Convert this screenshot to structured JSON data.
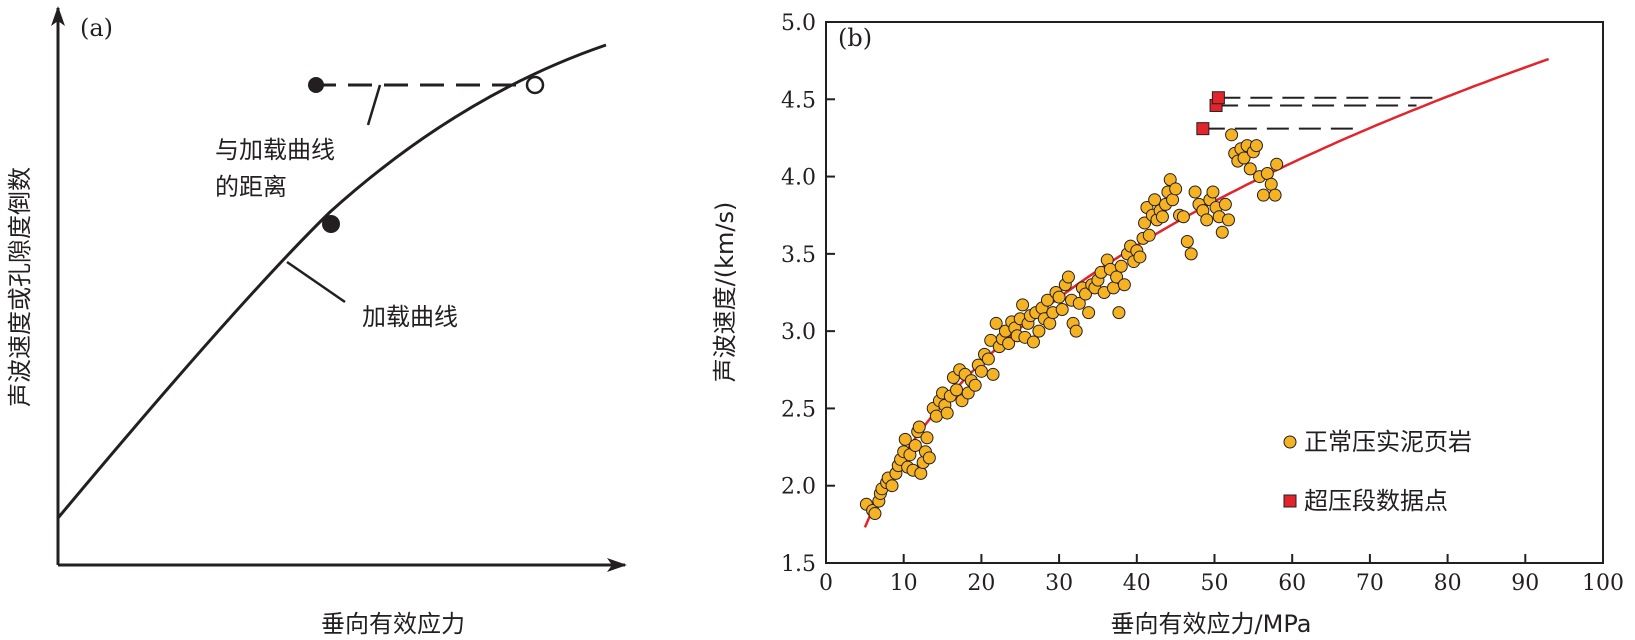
{
  "panel_a": {
    "label": "(a)",
    "ylabel": "声波速度或孔隙度倒数",
    "xlabel": "垂向有效应力",
    "annotation_distance_line1": "与加载曲线",
    "annotation_distance_line2": "的距离",
    "annotation_curve": "加载曲线"
  },
  "chart_data": [
    {
      "type": "scatter",
      "panel": "(b)",
      "xlabel": "垂向有效应力/MPa",
      "ylabel": "声波速度/(km/s)",
      "xlim": [
        0,
        100
      ],
      "ylim": [
        1.5,
        5.0
      ],
      "xticks": [
        "0",
        "10",
        "20",
        "30",
        "40",
        "50",
        "60",
        "70",
        "80",
        "90",
        "100"
      ],
      "yticks": [
        "1.5",
        "2.0",
        "2.5",
        "3.0",
        "3.5",
        "4.0",
        "4.5",
        "5.0"
      ],
      "grid": false,
      "legend_position": "bottom-right",
      "colors": {
        "normal": "#f5b324",
        "overpressure": "#e3242b",
        "curve": "#e3242b",
        "ink": "#231f20"
      },
      "series": [
        {
          "name": "正常压实泥页岩",
          "marker": "circle",
          "points": [
            [
              5.2,
              1.88
            ],
            [
              6.0,
              1.84
            ],
            [
              6.3,
              1.82
            ],
            [
              6.8,
              1.9
            ],
            [
              7.0,
              1.95
            ],
            [
              7.2,
              1.98
            ],
            [
              7.8,
              2.02
            ],
            [
              8.0,
              2.05
            ],
            [
              8.5,
              2.0
            ],
            [
              9.0,
              2.08
            ],
            [
              9.3,
              2.13
            ],
            [
              9.6,
              2.17
            ],
            [
              10.0,
              2.22
            ],
            [
              10.2,
              2.3
            ],
            [
              10.5,
              2.12
            ],
            [
              10.8,
              2.2
            ],
            [
              11.2,
              2.1
            ],
            [
              11.5,
              2.26
            ],
            [
              11.8,
              2.35
            ],
            [
              12.0,
              2.38
            ],
            [
              12.2,
              2.08
            ],
            [
              12.5,
              2.15
            ],
            [
              12.8,
              2.22
            ],
            [
              13.0,
              2.31
            ],
            [
              13.3,
              2.18
            ],
            [
              13.8,
              2.5
            ],
            [
              14.2,
              2.45
            ],
            [
              14.6,
              2.55
            ],
            [
              15.0,
              2.6
            ],
            [
              15.3,
              2.52
            ],
            [
              15.6,
              2.47
            ],
            [
              16.0,
              2.58
            ],
            [
              16.4,
              2.7
            ],
            [
              16.8,
              2.62
            ],
            [
              17.2,
              2.75
            ],
            [
              17.5,
              2.55
            ],
            [
              17.9,
              2.72
            ],
            [
              18.3,
              2.6
            ],
            [
              18.7,
              2.68
            ],
            [
              19.2,
              2.65
            ],
            [
              19.6,
              2.78
            ],
            [
              20.0,
              2.74
            ],
            [
              20.4,
              2.85
            ],
            [
              20.9,
              2.82
            ],
            [
              21.2,
              2.94
            ],
            [
              21.5,
              2.72
            ],
            [
              21.9,
              3.05
            ],
            [
              22.3,
              2.9
            ],
            [
              22.7,
              2.95
            ],
            [
              23.1,
              3.0
            ],
            [
              23.5,
              2.92
            ],
            [
              23.9,
              3.06
            ],
            [
              24.3,
              3.02
            ],
            [
              24.6,
              2.97
            ],
            [
              25.0,
              3.08
            ],
            [
              25.3,
              3.17
            ],
            [
              25.6,
              2.96
            ],
            [
              26.0,
              3.05
            ],
            [
              26.3,
              3.1
            ],
            [
              26.7,
              2.93
            ],
            [
              27.0,
              3.12
            ],
            [
              27.4,
              3.0
            ],
            [
              27.8,
              3.15
            ],
            [
              28.1,
              3.08
            ],
            [
              28.5,
              3.2
            ],
            [
              28.8,
              3.05
            ],
            [
              29.2,
              3.12
            ],
            [
              29.6,
              3.25
            ],
            [
              30.0,
              3.22
            ],
            [
              30.4,
              3.14
            ],
            [
              30.8,
              3.3
            ],
            [
              31.2,
              3.35
            ],
            [
              31.6,
              3.2
            ],
            [
              31.8,
              3.05
            ],
            [
              32.2,
              3.0
            ],
            [
              32.6,
              3.18
            ],
            [
              33.0,
              3.28
            ],
            [
              33.4,
              3.24
            ],
            [
              33.8,
              3.12
            ],
            [
              34.2,
              3.3
            ],
            [
              34.6,
              3.28
            ],
            [
              35.0,
              3.33
            ],
            [
              35.4,
              3.38
            ],
            [
              35.8,
              3.25
            ],
            [
              36.2,
              3.46
            ],
            [
              36.6,
              3.4
            ],
            [
              37.0,
              3.28
            ],
            [
              37.4,
              3.35
            ],
            [
              37.7,
              3.12
            ],
            [
              38.0,
              3.42
            ],
            [
              38.4,
              3.3
            ],
            [
              38.8,
              3.5
            ],
            [
              39.2,
              3.55
            ],
            [
              39.6,
              3.45
            ],
            [
              40.0,
              3.52
            ],
            [
              40.4,
              3.48
            ],
            [
              40.8,
              3.6
            ],
            [
              41.0,
              3.7
            ],
            [
              41.3,
              3.8
            ],
            [
              41.6,
              3.62
            ],
            [
              42.0,
              3.75
            ],
            [
              42.3,
              3.85
            ],
            [
              42.6,
              3.72
            ],
            [
              43.0,
              3.78
            ],
            [
              43.3,
              3.74
            ],
            [
              43.7,
              3.82
            ],
            [
              44.0,
              3.9
            ],
            [
              44.3,
              3.98
            ],
            [
              44.6,
              3.85
            ],
            [
              45.0,
              3.92
            ],
            [
              45.5,
              3.75
            ],
            [
              46.0,
              3.74
            ],
            [
              46.5,
              3.58
            ],
            [
              47.0,
              3.5
            ],
            [
              47.5,
              3.9
            ],
            [
              48.0,
              3.82
            ],
            [
              48.5,
              3.78
            ],
            [
              49.0,
              3.72
            ],
            [
              49.4,
              3.85
            ],
            [
              49.8,
              3.9
            ],
            [
              50.2,
              3.8
            ],
            [
              50.6,
              3.74
            ],
            [
              51.0,
              3.64
            ],
            [
              51.4,
              3.82
            ],
            [
              51.8,
              3.72
            ],
            [
              52.2,
              4.27
            ],
            [
              52.6,
              4.15
            ],
            [
              53.0,
              4.1
            ],
            [
              53.4,
              4.18
            ],
            [
              53.8,
              4.12
            ],
            [
              54.2,
              4.2
            ],
            [
              54.6,
              4.05
            ],
            [
              55.0,
              4.16
            ],
            [
              55.4,
              4.2
            ],
            [
              55.8,
              4.0
            ],
            [
              56.3,
              3.88
            ],
            [
              56.8,
              4.02
            ],
            [
              57.3,
              3.95
            ],
            [
              57.8,
              3.88
            ],
            [
              58.0,
              4.08
            ]
          ]
        },
        {
          "name": "超压段数据点",
          "marker": "square",
          "points": [
            [
              48.5,
              4.31
            ],
            [
              50.2,
              4.46
            ],
            [
              50.5,
              4.51
            ]
          ],
          "loading_curve_x": [
            69.0,
            76.0,
            79.0
          ]
        }
      ],
      "fit_curve": {
        "x_start": 5,
        "x_end": 93,
        "y_start": 1.73,
        "y_end": 4.76
      }
    }
  ]
}
